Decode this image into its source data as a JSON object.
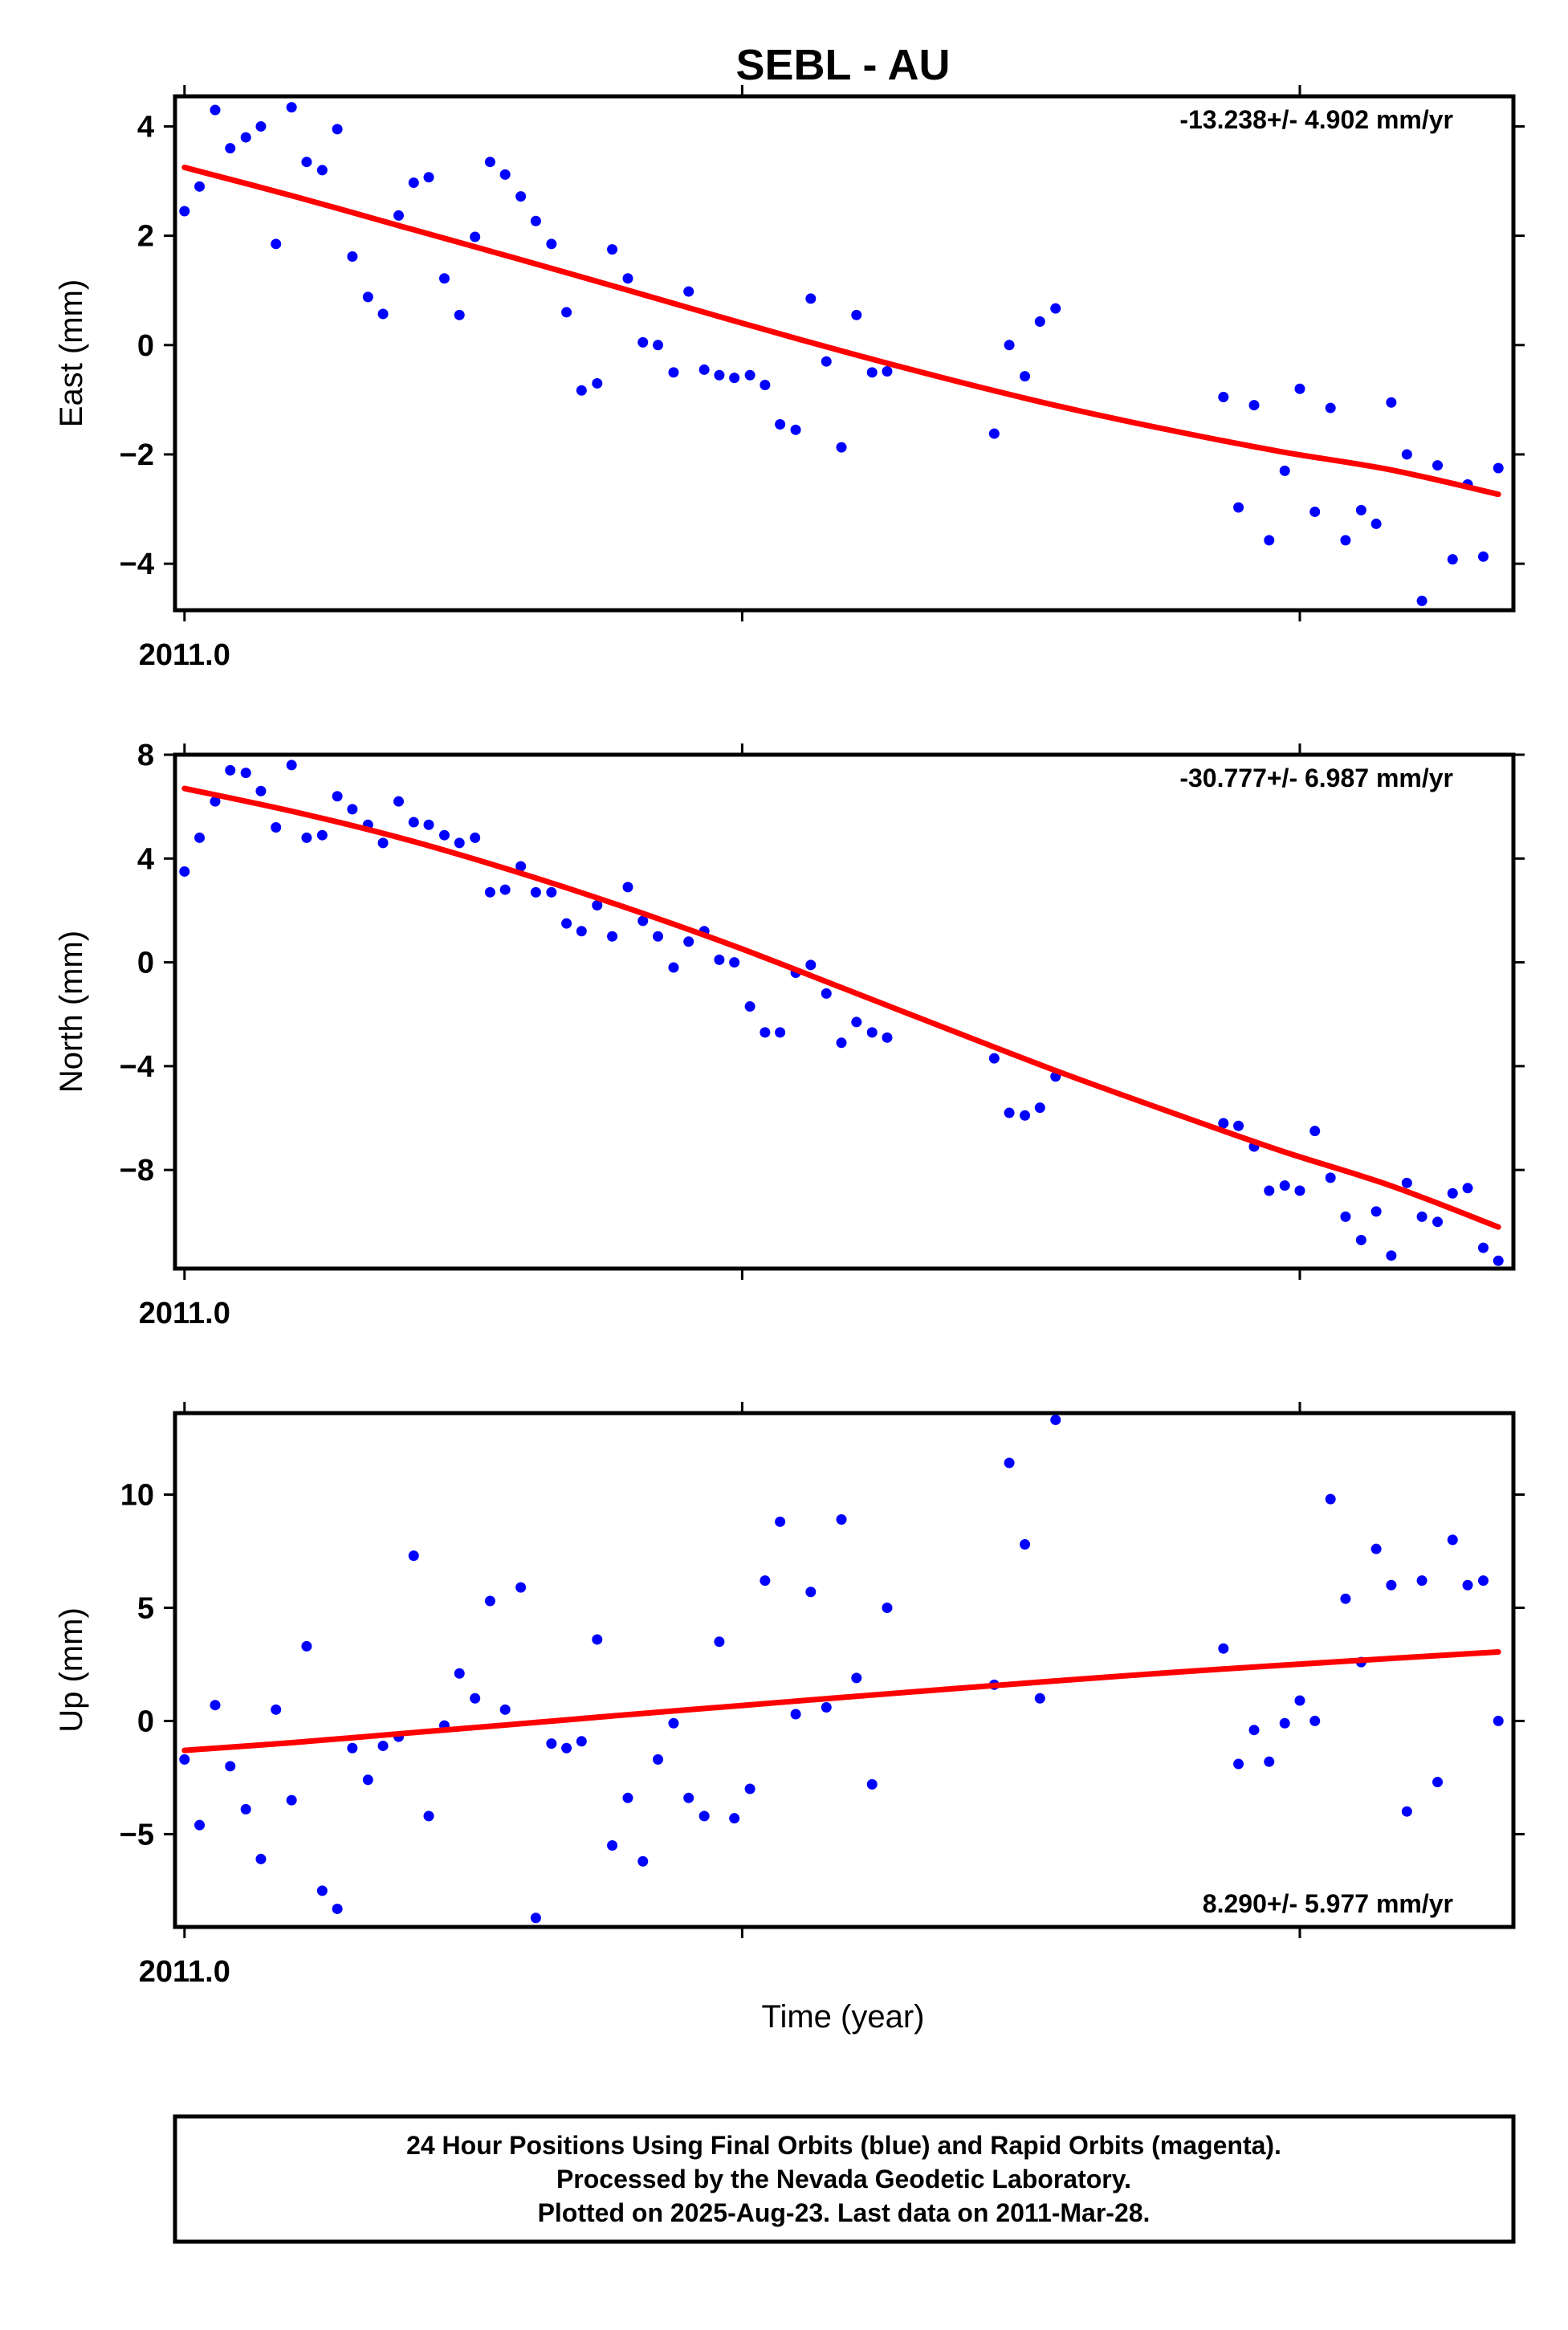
{
  "title": "SEBL - AU",
  "xlabel": "Time (year)",
  "footer": [
    "24 Hour Positions Using Final Orbits (blue) and Rapid Orbits (magenta).",
    "Processed by the Nevada Geodetic Laboratory.",
    "Plotted on 2025-Aug-23. Last data on 2011-Mar-28."
  ],
  "colors": {
    "points": "#0000ff",
    "fit": "#ff0000",
    "frame": "#000000"
  },
  "chart_data": [
    {
      "type": "scatter",
      "name": "east",
      "ylabel": "East (mm)",
      "rate_label": "-13.238+/- 4.902 mm/yr",
      "xlim": [
        2010.9983,
        2011.2383
      ],
      "ylim": [
        -4.85,
        4.55
      ],
      "yticks": [
        -4,
        -2,
        0,
        2,
        4
      ],
      "x_tick_labels": [
        {
          "x": 2011.0,
          "label": "2011.0"
        }
      ],
      "x_ticks_unlabeled": [
        2011.1,
        2011.2
      ],
      "points": [
        [
          2011.0,
          2.45
        ],
        [
          2011.0027,
          2.9
        ],
        [
          2011.0055,
          4.3
        ],
        [
          2011.0082,
          3.6
        ],
        [
          2011.011,
          3.8
        ],
        [
          2011.0137,
          4.0
        ],
        [
          2011.0164,
          1.85
        ],
        [
          2011.0192,
          4.35
        ],
        [
          2011.0219,
          3.35
        ],
        [
          2011.0247,
          3.2
        ],
        [
          2011.0274,
          3.95
        ],
        [
          2011.0301,
          1.62
        ],
        [
          2011.0329,
          0.88
        ],
        [
          2011.0356,
          0.57
        ],
        [
          2011.0384,
          2.37
        ],
        [
          2011.0411,
          2.97
        ],
        [
          2011.0438,
          3.07
        ],
        [
          2011.0466,
          1.22
        ],
        [
          2011.0493,
          0.55
        ],
        [
          2011.0521,
          1.98
        ],
        [
          2011.0548,
          3.35
        ],
        [
          2011.0575,
          3.12
        ],
        [
          2011.0603,
          2.72
        ],
        [
          2011.063,
          2.27
        ],
        [
          2011.0658,
          1.85
        ],
        [
          2011.0685,
          0.6
        ],
        [
          2011.0712,
          -0.83
        ],
        [
          2011.074,
          -0.7
        ],
        [
          2011.0767,
          1.75
        ],
        [
          2011.0795,
          1.22
        ],
        [
          2011.0822,
          0.05
        ],
        [
          2011.0849,
          0.0
        ],
        [
          2011.0877,
          -0.5
        ],
        [
          2011.0904,
          0.98
        ],
        [
          2011.0932,
          -0.45
        ],
        [
          2011.0959,
          -0.55
        ],
        [
          2011.0986,
          -0.6
        ],
        [
          2011.1014,
          -0.55
        ],
        [
          2011.1041,
          -0.73
        ],
        [
          2011.1068,
          -1.45
        ],
        [
          2011.1096,
          -1.55
        ],
        [
          2011.1123,
          0.85
        ],
        [
          2011.1151,
          -0.3
        ],
        [
          2011.1178,
          -1.87
        ],
        [
          2011.1205,
          0.55
        ],
        [
          2011.1233,
          -0.5
        ],
        [
          2011.126,
          -0.48
        ],
        [
          2011.1452,
          -1.62
        ],
        [
          2011.1479,
          0.0
        ],
        [
          2011.1507,
          -0.57
        ],
        [
          2011.1534,
          0.43
        ],
        [
          2011.1562,
          0.67
        ],
        [
          2011.1863,
          -0.95
        ],
        [
          2011.189,
          -2.97
        ],
        [
          2011.1918,
          -1.1
        ],
        [
          2011.1945,
          -3.57
        ],
        [
          2011.1973,
          -2.3
        ],
        [
          2011.2,
          -0.8
        ],
        [
          2011.2027,
          -3.05
        ],
        [
          2011.2055,
          -1.15
        ],
        [
          2011.2082,
          -3.57
        ],
        [
          2011.211,
          -3.02
        ],
        [
          2011.2137,
          -3.27
        ],
        [
          2011.2164,
          -1.05
        ],
        [
          2011.2192,
          -2.0
        ],
        [
          2011.2219,
          -4.68
        ],
        [
          2011.2247,
          -2.2
        ],
        [
          2011.2274,
          -3.92
        ],
        [
          2011.2301,
          -2.55
        ],
        [
          2011.2329,
          -3.87
        ],
        [
          2011.2356,
          -2.25
        ]
      ],
      "fit": [
        [
          2011.0,
          3.25
        ],
        [
          2011.0197,
          2.72
        ],
        [
          2011.0393,
          2.16
        ],
        [
          2011.059,
          1.6
        ],
        [
          2011.0786,
          1.03
        ],
        [
          2011.0983,
          0.45
        ],
        [
          2011.1179,
          -0.11
        ],
        [
          2011.1376,
          -0.64
        ],
        [
          2011.1573,
          -1.13
        ],
        [
          2011.1769,
          -1.56
        ],
        [
          2011.1966,
          -1.95
        ],
        [
          2011.2162,
          -2.28
        ],
        [
          2011.2356,
          -2.73
        ]
      ]
    },
    {
      "type": "scatter",
      "name": "north",
      "ylabel": "North (mm)",
      "rate_label": "-30.777+/- 6.987 mm/yr",
      "xlim": [
        2010.9983,
        2011.2383
      ],
      "ylim": [
        -11.8,
        8.0
      ],
      "yticks": [
        -8,
        -4,
        0,
        4,
        8
      ],
      "x_tick_labels": [
        {
          "x": 2011.0,
          "label": "2011.0"
        }
      ],
      "x_ticks_unlabeled": [
        2011.1,
        2011.2
      ],
      "points": [
        [
          2011.0,
          3.5
        ],
        [
          2011.0027,
          4.8
        ],
        [
          2011.0055,
          6.2
        ],
        [
          2011.0082,
          7.4
        ],
        [
          2011.011,
          7.3
        ],
        [
          2011.0137,
          6.6
        ],
        [
          2011.0164,
          5.2
        ],
        [
          2011.0192,
          7.6
        ],
        [
          2011.0219,
          4.8
        ],
        [
          2011.0247,
          4.9
        ],
        [
          2011.0274,
          6.4
        ],
        [
          2011.0301,
          5.9
        ],
        [
          2011.0329,
          5.3
        ],
        [
          2011.0356,
          4.6
        ],
        [
          2011.0384,
          6.2
        ],
        [
          2011.0411,
          5.4
        ],
        [
          2011.0438,
          5.3
        ],
        [
          2011.0466,
          4.9
        ],
        [
          2011.0493,
          4.6
        ],
        [
          2011.0521,
          4.8
        ],
        [
          2011.0548,
          2.7
        ],
        [
          2011.0575,
          2.8
        ],
        [
          2011.0603,
          3.7
        ],
        [
          2011.063,
          2.7
        ],
        [
          2011.0658,
          2.7
        ],
        [
          2011.0685,
          1.5
        ],
        [
          2011.0712,
          1.2
        ],
        [
          2011.074,
          2.2
        ],
        [
          2011.0767,
          1.0
        ],
        [
          2011.0795,
          2.9
        ],
        [
          2011.0822,
          1.6
        ],
        [
          2011.0849,
          1.0
        ],
        [
          2011.0877,
          -0.2
        ],
        [
          2011.0904,
          0.8
        ],
        [
          2011.0932,
          1.2
        ],
        [
          2011.0959,
          0.1
        ],
        [
          2011.0986,
          0.0
        ],
        [
          2011.1014,
          -1.7
        ],
        [
          2011.1041,
          -2.7
        ],
        [
          2011.1068,
          -2.7
        ],
        [
          2011.1096,
          -0.4
        ],
        [
          2011.1123,
          -0.1
        ],
        [
          2011.1151,
          -1.2
        ],
        [
          2011.1178,
          -3.1
        ],
        [
          2011.1205,
          -2.3
        ],
        [
          2011.1233,
          -2.7
        ],
        [
          2011.126,
          -2.9
        ],
        [
          2011.1452,
          -3.7
        ],
        [
          2011.1479,
          -5.8
        ],
        [
          2011.1507,
          -5.9
        ],
        [
          2011.1534,
          -5.6
        ],
        [
          2011.1562,
          -4.4
        ],
        [
          2011.1863,
          -6.2
        ],
        [
          2011.189,
          -6.3
        ],
        [
          2011.1918,
          -7.1
        ],
        [
          2011.1945,
          -8.8
        ],
        [
          2011.1973,
          -8.6
        ],
        [
          2011.2,
          -8.8
        ],
        [
          2011.2027,
          -6.5
        ],
        [
          2011.2055,
          -8.3
        ],
        [
          2011.2082,
          -9.8
        ],
        [
          2011.211,
          -10.7
        ],
        [
          2011.2137,
          -9.6
        ],
        [
          2011.2164,
          -11.3
        ],
        [
          2011.2192,
          -8.5
        ],
        [
          2011.2219,
          -9.8
        ],
        [
          2011.2247,
          -10.0
        ],
        [
          2011.2274,
          -8.9
        ],
        [
          2011.2301,
          -8.7
        ],
        [
          2011.2329,
          -11.0
        ],
        [
          2011.2356,
          -11.5
        ]
      ],
      "fit": [
        [
          2011.0,
          6.7
        ],
        [
          2011.0197,
          5.8
        ],
        [
          2011.0393,
          4.76
        ],
        [
          2011.059,
          3.52
        ],
        [
          2011.0786,
          2.15
        ],
        [
          2011.0983,
          0.65
        ],
        [
          2011.1179,
          -0.98
        ],
        [
          2011.1376,
          -2.63
        ],
        [
          2011.1573,
          -4.26
        ],
        [
          2011.1769,
          -5.78
        ],
        [
          2011.1966,
          -7.26
        ],
        [
          2011.2162,
          -8.6
        ],
        [
          2011.2356,
          -10.2
        ]
      ]
    },
    {
      "type": "scatter",
      "name": "up",
      "ylabel": "Up (mm)",
      "rate_label": "8.290+/- 5.977 mm/yr",
      "xlim": [
        2010.9983,
        2011.2383
      ],
      "ylim": [
        -9.1,
        13.6
      ],
      "yticks": [
        -5,
        0,
        5,
        10
      ],
      "x_tick_labels": [
        {
          "x": 2011.0,
          "label": "2011.0"
        }
      ],
      "x_ticks_unlabeled": [
        2011.1,
        2011.2
      ],
      "points": [
        [
          2011.0,
          -1.7
        ],
        [
          2011.0027,
          -4.6
        ],
        [
          2011.0055,
          0.7
        ],
        [
          2011.0082,
          -2.0
        ],
        [
          2011.011,
          -3.9
        ],
        [
          2011.0137,
          -6.1
        ],
        [
          2011.0164,
          0.5
        ],
        [
          2011.0192,
          -3.5
        ],
        [
          2011.0219,
          3.3
        ],
        [
          2011.0247,
          -7.5
        ],
        [
          2011.0274,
          -8.3
        ],
        [
          2011.0301,
          -1.2
        ],
        [
          2011.0329,
          -2.6
        ],
        [
          2011.0356,
          -1.1
        ],
        [
          2011.0384,
          -0.7
        ],
        [
          2011.0411,
          7.3
        ],
        [
          2011.0438,
          -4.2
        ],
        [
          2011.0466,
          -0.2
        ],
        [
          2011.0493,
          2.1
        ],
        [
          2011.0521,
          1.0
        ],
        [
          2011.0548,
          5.3
        ],
        [
          2011.0575,
          0.5
        ],
        [
          2011.0603,
          5.9
        ],
        [
          2011.063,
          -8.7
        ],
        [
          2011.0658,
          -1.0
        ],
        [
          2011.0685,
          -1.2
        ],
        [
          2011.0712,
          -0.9
        ],
        [
          2011.074,
          3.6
        ],
        [
          2011.0767,
          -5.5
        ],
        [
          2011.0795,
          -3.4
        ],
        [
          2011.0822,
          -6.2
        ],
        [
          2011.0849,
          -1.7
        ],
        [
          2011.0877,
          -0.1
        ],
        [
          2011.0904,
          -3.4
        ],
        [
          2011.0932,
          -4.2
        ],
        [
          2011.0959,
          3.5
        ],
        [
          2011.0986,
          -4.3
        ],
        [
          2011.1014,
          -3.0
        ],
        [
          2011.1041,
          6.2
        ],
        [
          2011.1068,
          8.8
        ],
        [
          2011.1096,
          0.3
        ],
        [
          2011.1123,
          5.7
        ],
        [
          2011.1151,
          0.6
        ],
        [
          2011.1178,
          8.9
        ],
        [
          2011.1205,
          1.9
        ],
        [
          2011.1233,
          -2.8
        ],
        [
          2011.126,
          5.0
        ],
        [
          2011.1452,
          1.6
        ],
        [
          2011.1479,
          11.4
        ],
        [
          2011.1507,
          7.8
        ],
        [
          2011.1534,
          1.0
        ],
        [
          2011.1562,
          13.3
        ],
        [
          2011.1863,
          3.2
        ],
        [
          2011.189,
          -1.9
        ],
        [
          2011.1918,
          -0.4
        ],
        [
          2011.1945,
          -1.8
        ],
        [
          2011.1973,
          -0.1
        ],
        [
          2011.2,
          0.9
        ],
        [
          2011.2027,
          0.0
        ],
        [
          2011.2055,
          9.8
        ],
        [
          2011.2082,
          5.4
        ],
        [
          2011.211,
          2.6
        ],
        [
          2011.2137,
          7.6
        ],
        [
          2011.2164,
          6.0
        ],
        [
          2011.2192,
          -4.0
        ],
        [
          2011.2219,
          6.2
        ],
        [
          2011.2247,
          -2.7
        ],
        [
          2011.2274,
          8.0
        ],
        [
          2011.2301,
          6.0
        ],
        [
          2011.2329,
          6.2
        ],
        [
          2011.2356,
          0.0
        ]
      ],
      "fit": [
        [
          2011.0,
          -1.3
        ],
        [
          2011.0197,
          -0.95
        ],
        [
          2011.0393,
          -0.55
        ],
        [
          2011.059,
          -0.15
        ],
        [
          2011.0786,
          0.26
        ],
        [
          2011.0983,
          0.65
        ],
        [
          2011.1179,
          1.04
        ],
        [
          2011.1376,
          1.42
        ],
        [
          2011.1573,
          1.79
        ],
        [
          2011.1769,
          2.14
        ],
        [
          2011.1966,
          2.46
        ],
        [
          2011.2162,
          2.76
        ],
        [
          2011.2356,
          3.05
        ]
      ]
    }
  ]
}
